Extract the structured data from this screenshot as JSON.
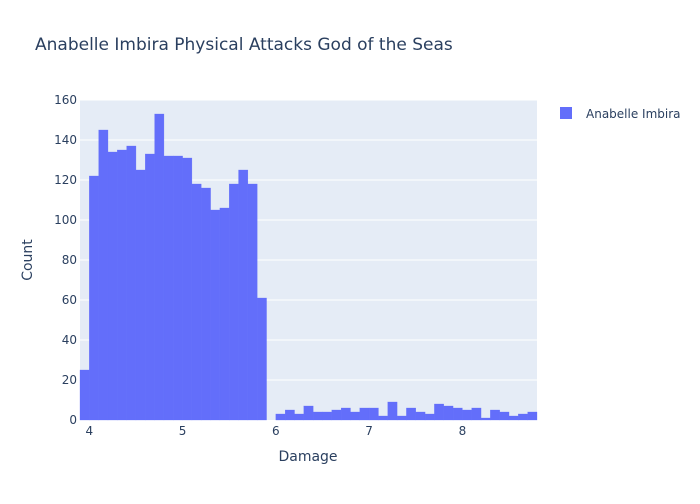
{
  "chart_data": {
    "type": "bar",
    "title": "Anabelle Imbira Physical Attacks God of the Seas",
    "xlabel": "Damage",
    "ylabel": "Count",
    "xlim": [
      3.9,
      8.8
    ],
    "ylim": [
      0,
      160
    ],
    "x_ticks": [
      4,
      5,
      6,
      7,
      8
    ],
    "y_ticks": [
      0,
      20,
      40,
      60,
      80,
      100,
      120,
      140,
      160
    ],
    "grid": true,
    "legend_position": "top-right",
    "series": [
      {
        "name": "Anabelle Imbira",
        "color": "#636efa",
        "bin_start": 3.9,
        "bin_width": 0.1,
        "values": [
          25,
          122,
          145,
          134,
          135,
          137,
          125,
          133,
          153,
          132,
          132,
          131,
          118,
          116,
          105,
          106,
          118,
          125,
          118,
          61,
          0,
          3,
          5,
          3,
          7,
          4,
          4,
          5,
          6,
          4,
          6,
          6,
          2,
          9,
          2,
          6,
          4,
          3,
          8,
          7,
          6,
          5,
          6,
          1,
          5,
          4,
          2,
          3,
          4
        ]
      }
    ]
  }
}
